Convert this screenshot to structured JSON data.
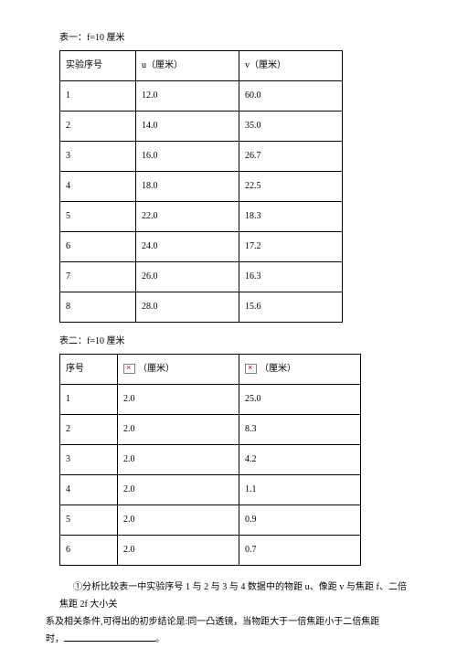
{
  "table1": {
    "caption": "表一：f=10 厘米",
    "headers": [
      "实验序号",
      "u（厘米）",
      "v（厘米）"
    ],
    "rows": [
      [
        "1",
        "12.0",
        "60.0"
      ],
      [
        "2",
        "14.0",
        "35.0"
      ],
      [
        "3",
        "16.0",
        "26.7"
      ],
      [
        "4",
        "18.0",
        "22.5"
      ],
      [
        "5",
        "22.0",
        "18.3"
      ],
      [
        "6",
        "24.0",
        "17.2"
      ],
      [
        "7",
        "26.0",
        "16.3"
      ],
      [
        "8",
        "28.0",
        "15.6"
      ]
    ]
  },
  "table2": {
    "caption": "表二：f=10 厘米",
    "headers": [
      "序号",
      "（厘米）",
      "（厘米）"
    ],
    "rows": [
      [
        "1",
        "2.0",
        "25.0"
      ],
      [
        "2",
        "2.0",
        "8.3"
      ],
      [
        "3",
        "2.0",
        "4.2"
      ],
      [
        "4",
        "2.0",
        "1.1"
      ],
      [
        "5",
        "2.0",
        "0.9"
      ],
      [
        "6",
        "2.0",
        "0.7"
      ]
    ]
  },
  "paragraph": {
    "line1": "①分析比较表一中实验序号 1 与 2 与 3 与 4 数据中的物距 u、像距 v 与焦距 f、二倍焦距 2f 大小关",
    "line2": "系及相关条件,可得出的初步结论是:同一凸透镜，当物距大于一倍焦距小于二倍焦距",
    "line3_prefix": "时，",
    "line3_suffix": "。"
  }
}
